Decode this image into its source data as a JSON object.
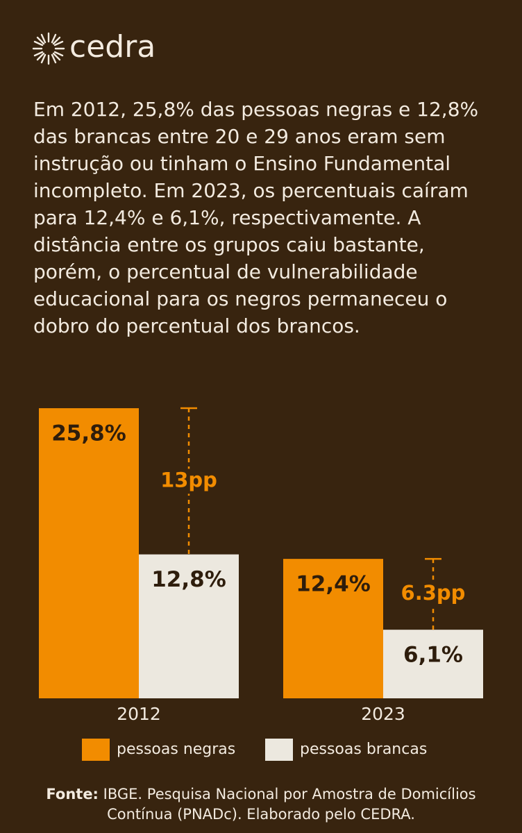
{
  "brand": "cedra",
  "intro": "Em 2012, 25,8% das pessoas negras e 12,8% das brancas entre 20 e 29 anos eram sem instrução ou tinham o Ensino Fundamental incompleto. Em 2023, os percentuais caíram para 12,4% e 6,1%, respectivamente. A distância entre os grupos caiu bastante, porém, o percentual de vulnerabilidade educacional para os negros permaneceu o dobro do percentual dos brancos.",
  "chart_data": {
    "type": "bar",
    "categories": [
      "2012",
      "2023"
    ],
    "series": [
      {
        "name": "pessoas negras",
        "color": "#f28c00",
        "values": [
          25.8,
          12.4
        ],
        "value_labels": [
          "25,8%",
          "12,4%"
        ]
      },
      {
        "name": "pessoas brancas",
        "color": "#ece8df",
        "values": [
          12.8,
          6.1
        ],
        "value_labels": [
          "12,8%",
          "6,1%"
        ]
      }
    ],
    "annotations": [
      "13pp",
      "6.3pp"
    ]
  },
  "source": {
    "label": "Fonte:",
    "text": "IBGE. Pesquisa Nacional por Amostra de Domicílios Contínua (PNADc). Elaborado pelo CEDRA."
  }
}
